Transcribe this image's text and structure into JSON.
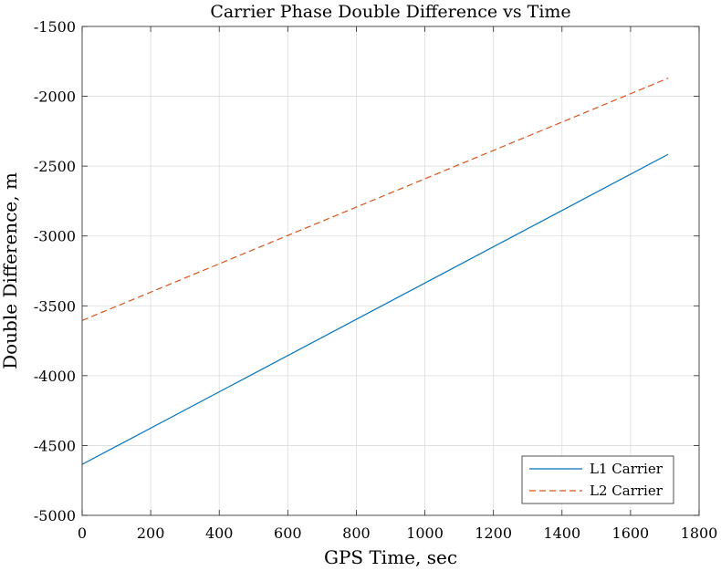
{
  "chart_data": {
    "type": "line",
    "title": "Carrier Phase Double Difference vs Time",
    "xlabel": "GPS Time, sec",
    "ylabel": "Double Difference, m",
    "xlim": [
      0,
      1800
    ],
    "ylim": [
      -5000,
      -1500
    ],
    "xticks": [
      0,
      200,
      400,
      600,
      800,
      1000,
      1200,
      1400,
      1600,
      1800
    ],
    "yticks": [
      -1500,
      -2000,
      -2500,
      -3000,
      -3500,
      -4000,
      -4500,
      -5000
    ],
    "xtick_labels": [
      "0",
      "200",
      "400",
      "600",
      "800",
      "1000",
      "1200",
      "1400",
      "1600",
      "1800"
    ],
    "ytick_labels": [
      "-1500",
      "-2000",
      "-2500",
      "-3000",
      "-3500",
      "-4000",
      "-4500",
      "-5000"
    ],
    "grid": true,
    "legend_position": "bottom-right",
    "series": [
      {
        "name": "L1 Carrier",
        "color": "#0072BD",
        "style": "solid",
        "x": [
          0,
          1710
        ],
        "y": [
          -4635,
          -2415
        ]
      },
      {
        "name": "L2 Carrier",
        "color": "#D95319",
        "style": "dashed",
        "x": [
          0,
          1710
        ],
        "y": [
          -3605,
          -1870
        ]
      }
    ]
  }
}
